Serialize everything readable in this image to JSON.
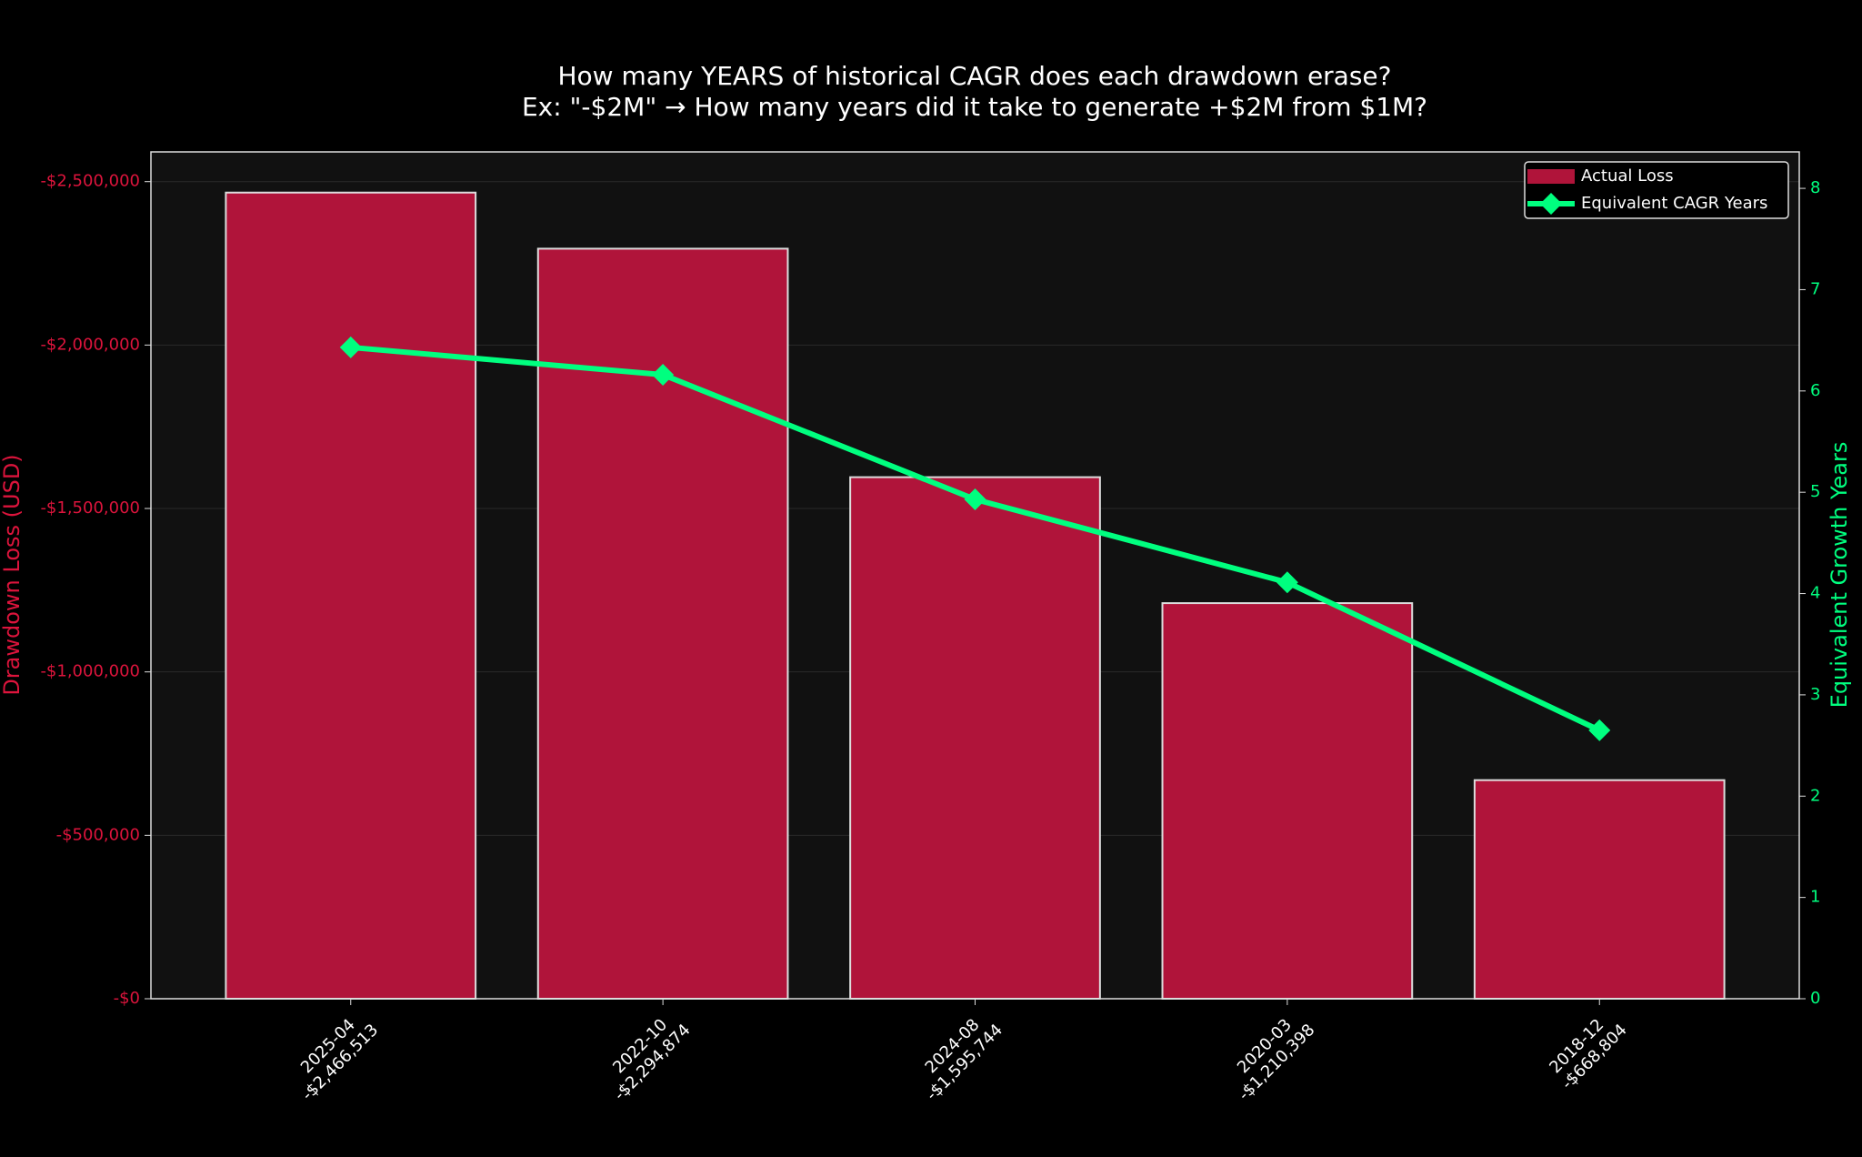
{
  "chart_data": {
    "type": "bar_line",
    "title": "How many YEARS of historical CAGR does each drawdown erase?",
    "subtitle": "Ex: \"-$2M\" → How many years did it take to generate +$2M from $1M?",
    "ylabel": "Drawdown Loss (USD)",
    "y2label": "Equivalent Growth Years",
    "categories": [
      "2025-04",
      "2022-10",
      "2024-08",
      "2020-03",
      "2018-12"
    ],
    "series": [
      {
        "name": "Actual Loss",
        "type": "bar",
        "color": "#b0143a",
        "values": [
          -2466513,
          -2294874,
          -1595744,
          -1210398,
          -668804
        ],
        "value_labels": [
          "-$2,466,513",
          "-$2,294,874",
          "-$1,595,744",
          "-$1,210,398",
          "-$668,804"
        ]
      },
      {
        "name": "Equivalent CAGR Years",
        "type": "line",
        "axis": "y2",
        "color": "#00ff7f",
        "values": [
          6.43,
          6.16,
          4.93,
          4.11,
          2.65
        ]
      }
    ],
    "ylim": [
      0,
      -2591000
    ],
    "yticks": [
      {
        "value": 0,
        "label": "-$0"
      },
      {
        "value": -500000,
        "label": "-$500,000"
      },
      {
        "value": -1000000,
        "label": "-$1,000,000"
      },
      {
        "value": -1500000,
        "label": "-$1,500,000"
      },
      {
        "value": -2000000,
        "label": "-$2,000,000"
      },
      {
        "value": -2500000,
        "label": "-$2,500,000"
      }
    ],
    "y2lim": [
      0,
      8.36
    ],
    "y2ticks": [
      0,
      1,
      2,
      3,
      4,
      5,
      6,
      7,
      8
    ],
    "grid": true,
    "legend": "upper right"
  }
}
